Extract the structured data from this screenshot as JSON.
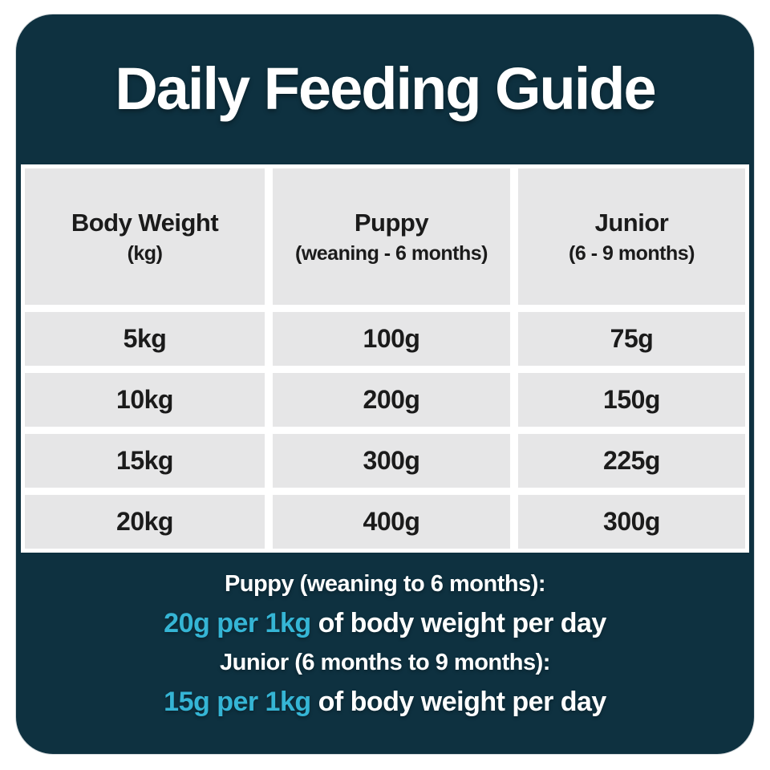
{
  "colors": {
    "card_background": "#0e3140",
    "cell_background": "#e6e6e7",
    "accent_cyan": "#35b5d5",
    "text_dark": "#1b1b1b",
    "text_light": "#ffffff"
  },
  "title": "Daily Feeding Guide",
  "table": {
    "headers": [
      {
        "label": "Body Weight",
        "sub": "(kg)"
      },
      {
        "label": "Puppy",
        "sub": "(weaning - 6 months)"
      },
      {
        "label": "Junior",
        "sub": "(6 - 9 months)"
      }
    ],
    "rows": [
      [
        "5kg",
        "100g",
        "75g"
      ],
      [
        "10kg",
        "200g",
        "150g"
      ],
      [
        "15kg",
        "300g",
        "225g"
      ],
      [
        "20kg",
        "400g",
        "300g"
      ]
    ]
  },
  "notes": [
    {
      "heading": "Puppy (weaning to 6 months):",
      "highlight": "20g per 1kg",
      "rest": " of body weight per day"
    },
    {
      "heading": "Junior (6 months to 9 months):",
      "highlight": "15g per 1kg",
      "rest": " of body weight per day"
    }
  ],
  "chart_data": {
    "type": "table",
    "title": "Daily Feeding Guide",
    "columns": [
      "Body Weight (kg)",
      "Puppy (weaning - 6 months)",
      "Junior (6 - 9 months)"
    ],
    "rows": [
      [
        "5kg",
        "100g",
        "75g"
      ],
      [
        "10kg",
        "200g",
        "150g"
      ],
      [
        "15kg",
        "300g",
        "225g"
      ],
      [
        "20kg",
        "400g",
        "300g"
      ]
    ],
    "annotations": [
      "Puppy (weaning to 6 months): 20g per 1kg of body weight per day",
      "Junior (6 months to 9 months): 15g per 1kg of body weight per day"
    ],
    "feeding_rates_g_per_kg_per_day": {
      "puppy": 20,
      "junior": 15
    }
  }
}
